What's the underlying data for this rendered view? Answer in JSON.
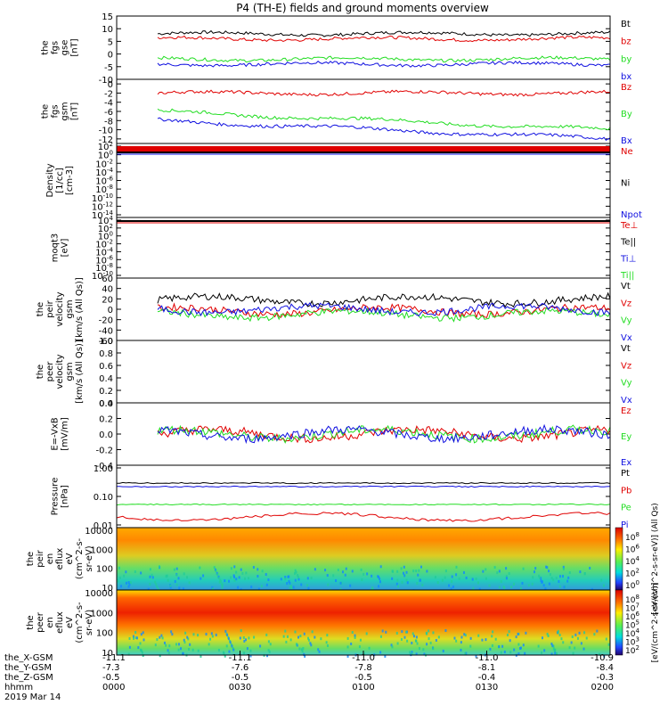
{
  "title": "P4 (TH-E) fields and ground moments overview",
  "colors": {
    "black": "#000000",
    "red": "#e00000",
    "green": "#22dd22",
    "blue": "#1010e0"
  },
  "chart_data": [
    {
      "type": "line",
      "ylabel": [
        "the",
        "fgs",
        "gse",
        "[nT]"
      ],
      "ylim": [
        -10,
        15
      ],
      "yticks": [
        "15",
        "10",
        "5",
        "0",
        "-5",
        "-10"
      ],
      "tickvals": [
        15,
        10,
        5,
        0,
        -5,
        -10
      ],
      "series": [
        {
          "name": "Bt",
          "color": "black",
          "base": 8
        },
        {
          "name": "bz",
          "color": "red",
          "base": 6
        },
        {
          "name": "by",
          "color": "green",
          "base": -2
        },
        {
          "name": "bx",
          "color": "blue",
          "base": -4
        }
      ]
    },
    {
      "type": "line",
      "ylabel": [
        "the",
        "fgs",
        "gsm",
        "[nT]"
      ],
      "ylim": [
        -13,
        1
      ],
      "yticks": [
        "0",
        "-2",
        "-4",
        "-6",
        "-8",
        "-10",
        "-12"
      ],
      "tickvals": [
        0,
        -2,
        -4,
        -6,
        -8,
        -10,
        -12
      ],
      "series": [
        {
          "name": "Bz",
          "color": "red",
          "base": -2
        },
        {
          "name": "By",
          "color": "green",
          "base": -6
        },
        {
          "name": "Bx",
          "color": "blue",
          "base": -8
        }
      ]
    },
    {
      "type": "line",
      "ylabel": [
        "Density",
        "[1/cc]",
        "[cm-3]"
      ],
      "log": true,
      "yticks": [
        "10^2",
        "10^0",
        "10^-2",
        "10^-4",
        "10^-6",
        "10^-8",
        "10^-10",
        "10^-12",
        "10^-14"
      ],
      "series": [
        {
          "name": "Ne",
          "color": "red"
        },
        {
          "name": "Ni",
          "color": "black"
        },
        {
          "name": "Npot",
          "color": "blue"
        }
      ]
    },
    {
      "type": "line",
      "ylabel": [
        "moqt3",
        "[eV]"
      ],
      "log": true,
      "yticks": [
        "10^4",
        "10^2",
        "10^0",
        "10^-2",
        "10^-4",
        "10^-6",
        "10^-8",
        "10^-10"
      ],
      "series": [
        {
          "name": "Te⊥",
          "color": "red"
        },
        {
          "name": "Te||",
          "color": "black"
        },
        {
          "name": "Ti⊥",
          "color": "blue"
        },
        {
          "name": "Ti||",
          "color": "green"
        }
      ]
    },
    {
      "type": "line",
      "ylabel": [
        "the",
        "peir",
        "velocity",
        "gsm",
        "[km/s (All Qs)]"
      ],
      "ylim": [
        -60,
        60
      ],
      "yticks": [
        "60",
        "40",
        "20",
        "0",
        "-20",
        "-40",
        "-60"
      ],
      "tickvals": [
        60,
        40,
        20,
        0,
        -20,
        -40,
        -60
      ],
      "series": [
        {
          "name": "Vt",
          "color": "black",
          "base": 18
        },
        {
          "name": "Vz",
          "color": "red",
          "base": -3
        },
        {
          "name": "Vy",
          "color": "green",
          "base": -10
        },
        {
          "name": "Vx",
          "color": "blue",
          "base": 0
        }
      ]
    },
    {
      "type": "line",
      "ylabel": [
        "the",
        "peer",
        "velocity",
        "gsm",
        "[km/s (All Qs)]"
      ],
      "ylim": [
        0,
        1
      ],
      "yticks": [
        "1.0",
        "0.8",
        "0.6",
        "0.4",
        "0.2",
        "0.0"
      ],
      "tickvals": [
        1,
        0.8,
        0.6,
        0.4,
        0.2,
        0
      ],
      "series": [
        {
          "name": "Vt",
          "color": "black"
        },
        {
          "name": "Vz",
          "color": "red"
        },
        {
          "name": "Vy",
          "color": "green"
        },
        {
          "name": "Vx",
          "color": "blue"
        }
      ]
    },
    {
      "type": "line",
      "ylabel": [
        "E=-VxB",
        "[mV/m]"
      ],
      "ylim": [
        -0.4,
        0.4
      ],
      "yticks": [
        "0.4",
        "0.2",
        "0.0",
        "-0.2",
        "-0.4"
      ],
      "tickvals": [
        0.4,
        0.2,
        0,
        -0.2,
        -0.4
      ],
      "series": [
        {
          "name": "Ez",
          "color": "red",
          "base": 0
        },
        {
          "name": "Ey",
          "color": "green",
          "base": 0
        },
        {
          "name": "Ex",
          "color": "blue",
          "base": 0
        }
      ]
    },
    {
      "type": "line",
      "ylabel": [
        "Pressure",
        "[nPa]"
      ],
      "log": true,
      "yticks": [
        "1.00",
        "0.10",
        "0.01"
      ],
      "series": [
        {
          "name": "Pt",
          "color": "black",
          "val": 0.4
        },
        {
          "name": "Pb",
          "color": "red",
          "val": 0.035
        },
        {
          "name": "Pe",
          "color": "green",
          "val": 0.065
        },
        {
          "name": "Pi",
          "color": "blue",
          "val": 0.25
        }
      ]
    },
    {
      "type": "heatmap",
      "ylabel": [
        "the",
        "peir",
        "en",
        "eflux",
        "eV",
        "(cm^2-s-",
        "sr-eV)"
      ],
      "yticks": [
        "10000",
        "1000",
        "100",
        "10"
      ],
      "colorbar_label": "[eV/(cm^2-s-sr-eV)] (All Qs)",
      "colorbar_ticks": [
        "10^8",
        "10^6",
        "10^4",
        "10^2",
        "10^0"
      ]
    },
    {
      "type": "heatmap",
      "ylabel": [
        "the",
        "peer",
        "en",
        "eflux",
        "eV",
        "(cm^2-s-",
        "sr-eV)"
      ],
      "yticks": [
        "10000",
        "1000",
        "100",
        "10"
      ],
      "colorbar_label": "[eV/(cm^2-s-sr-eV)]",
      "colorbar_ticks": [
        "10^8",
        "10^7",
        "10^6",
        "10^5",
        "10^4",
        "10^3",
        "10^2"
      ]
    }
  ],
  "xaxis": {
    "row_labels": [
      "the_X-GSM",
      "the_Y-GSM",
      "the_Z-GSM",
      "hhmm",
      "2019 Mar 14"
    ],
    "ticks": [
      {
        "x": "-11.1",
        "y": "-7.3",
        "z": "-0.5",
        "hhmm": "0000"
      },
      {
        "x": "-11.1",
        "y": "-7.6",
        "z": "-0.5",
        "hhmm": "0030"
      },
      {
        "x": "-11.0",
        "y": "-7.8",
        "z": "-0.5",
        "hhmm": "0100"
      },
      {
        "x": "-11.0",
        "y": "-8.1",
        "z": "-0.4",
        "hhmm": "0130"
      },
      {
        "x": "-10.9",
        "y": "-8.4",
        "z": "-0.3",
        "hhmm": "0200"
      }
    ]
  }
}
